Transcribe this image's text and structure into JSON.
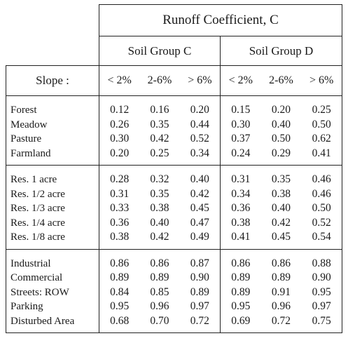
{
  "table": {
    "title": "Runoff Coefficient, C",
    "groups": [
      {
        "label": "Soil Group C"
      },
      {
        "label": "Soil Group D"
      }
    ],
    "slope_label": "Slope :",
    "slopes": [
      "< 2%",
      "2-6%",
      "> 6%"
    ],
    "sections": [
      {
        "labels": [
          "Forest",
          "Meadow",
          "Pasture",
          "Farmland"
        ],
        "groupC": [
          [
            "0.12",
            "0.26",
            "0.30",
            "0.20"
          ],
          [
            "0.16",
            "0.35",
            "0.42",
            "0.25"
          ],
          [
            "0.20",
            "0.44",
            "0.52",
            "0.34"
          ]
        ],
        "groupD": [
          [
            "0.15",
            "0.30",
            "0.37",
            "0.24"
          ],
          [
            "0.20",
            "0.40",
            "0.50",
            "0.29"
          ],
          [
            "0.25",
            "0.50",
            "0.62",
            "0.41"
          ]
        ]
      },
      {
        "labels": [
          "Res. 1 acre",
          "Res. 1/2 acre",
          "Res. 1/3 acre",
          "Res. 1/4 acre",
          "Res. 1/8 acre"
        ],
        "groupC": [
          [
            "0.28",
            "0.31",
            "0.33",
            "0.36",
            "0.38"
          ],
          [
            "0.32",
            "0.35",
            "0.38",
            "0.40",
            "0.42"
          ],
          [
            "0.40",
            "0.42",
            "0.45",
            "0.47",
            "0.49"
          ]
        ],
        "groupD": [
          [
            "0.31",
            "0.34",
            "0.36",
            "0.38",
            "0.41"
          ],
          [
            "0.35",
            "0.38",
            "0.40",
            "0.42",
            "0.45"
          ],
          [
            "0.46",
            "0.46",
            "0.50",
            "0.52",
            "0.54"
          ]
        ]
      },
      {
        "labels": [
          "Industrial",
          "Commercial",
          "Streets: ROW",
          "Parking",
          "Disturbed Area"
        ],
        "groupC": [
          [
            "0.86",
            "0.89",
            "0.84",
            "0.95",
            "0.68"
          ],
          [
            "0.86",
            "0.89",
            "0.85",
            "0.96",
            "0.70"
          ],
          [
            "0.87",
            "0.90",
            "0.89",
            "0.97",
            "0.72"
          ]
        ],
        "groupD": [
          [
            "0.86",
            "0.89",
            "0.89",
            "0.95",
            "0.69"
          ],
          [
            "0.86",
            "0.89",
            "0.91",
            "0.96",
            "0.72"
          ],
          [
            "0.88",
            "0.90",
            "0.95",
            "0.97",
            "0.75"
          ]
        ]
      }
    ]
  }
}
